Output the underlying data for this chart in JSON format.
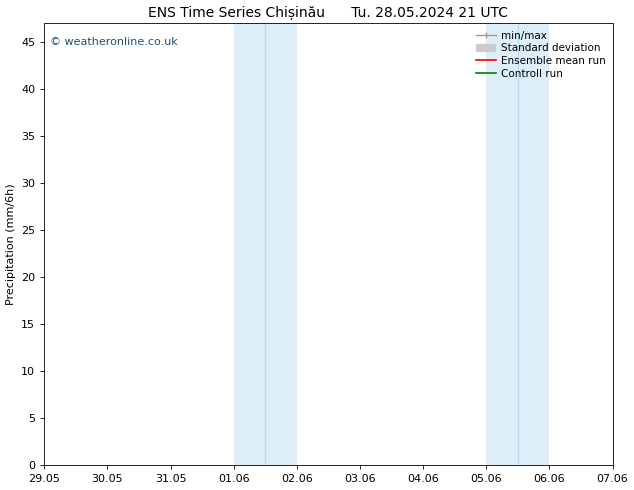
{
  "title": "ENS Time Series Chișinău      Tu. 28.05.2024 21 UTC",
  "ylabel": "Precipitation (mm/6h)",
  "xlabel_ticks": [
    "29.05",
    "30.05",
    "31.05",
    "01.06",
    "02.06",
    "03.06",
    "04.06",
    "05.06",
    "06.06",
    "07.06"
  ],
  "xlim": [
    0,
    9
  ],
  "ylim": [
    0,
    47
  ],
  "yticks": [
    0,
    5,
    10,
    15,
    20,
    25,
    30,
    35,
    40,
    45
  ],
  "shaded_regions": [
    {
      "x_start": 3.0,
      "x_end": 4.0,
      "color": "#ddeef8"
    },
    {
      "x_start": 7.0,
      "x_end": 8.0,
      "color": "#ddeef8"
    }
  ],
  "inner_lines": [
    {
      "x": 3.5,
      "color": "#b8d8ee",
      "lw": 0.8
    },
    {
      "x": 7.5,
      "color": "#b8d8ee",
      "lw": 0.8
    }
  ],
  "watermark": "© weatheronline.co.uk",
  "watermark_color": "#1a5276",
  "bg_color": "#ffffff",
  "plot_bg_color": "#ffffff",
  "spine_color": "#000000",
  "tick_color": "#000000",
  "font_size": 8,
  "title_font_size": 10
}
